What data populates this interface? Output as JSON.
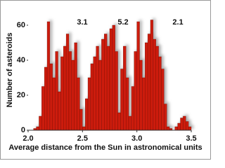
{
  "chart_data": {
    "type": "histogram",
    "x_label": "Average distance from the Sun in astronomical units",
    "y_label": "Number of asteroids",
    "annotations": [
      "3.1",
      "5.2",
      "2.1"
    ],
    "color": "#cc1a0a",
    "bins": [
      2.0,
      2.025,
      2.05,
      2.075,
      2.1,
      2.125,
      2.15,
      2.175,
      2.2,
      2.225,
      2.25,
      2.275,
      2.3,
      2.325,
      2.35,
      2.375,
      2.4,
      2.425,
      2.45,
      2.475,
      2.5,
      2.525,
      2.55,
      2.575,
      2.6,
      2.625,
      2.65,
      2.675,
      2.7,
      2.725,
      2.75,
      2.775,
      2.8,
      2.825,
      2.85,
      2.875,
      2.9,
      2.925,
      2.95,
      2.975,
      3.0,
      3.025,
      3.05,
      3.075,
      3.1,
      3.125,
      3.15,
      3.175,
      3.2,
      3.225,
      3.25,
      3.275,
      3.3,
      3.325,
      3.35,
      3.375,
      3.4,
      3.425,
      3.45,
      3.475,
      3.5
    ],
    "values": [
      0,
      0,
      1,
      2,
      8,
      25,
      36,
      62,
      38,
      30,
      45,
      22,
      42,
      48,
      55,
      45,
      40,
      50,
      30,
      12,
      2,
      18,
      30,
      38,
      42,
      48,
      40,
      52,
      55,
      48,
      58,
      60,
      45,
      10,
      35,
      48,
      30,
      8,
      25,
      45,
      62,
      40,
      30,
      50,
      55,
      63,
      52,
      48,
      42,
      35,
      15,
      2,
      1,
      0,
      2,
      4,
      7,
      8,
      5,
      2
    ],
    "xlim": [
      2.0,
      3.5
    ],
    "xticks": [
      {
        "value": 2.0,
        "label": "2.0"
      },
      2.5,
      {
        "value": 3.0,
        "label": "3.0"
      },
      3.5
    ],
    "ylim": [
      0,
      66
    ],
    "yticks": [
      0,
      20,
      40,
      60
    ]
  }
}
